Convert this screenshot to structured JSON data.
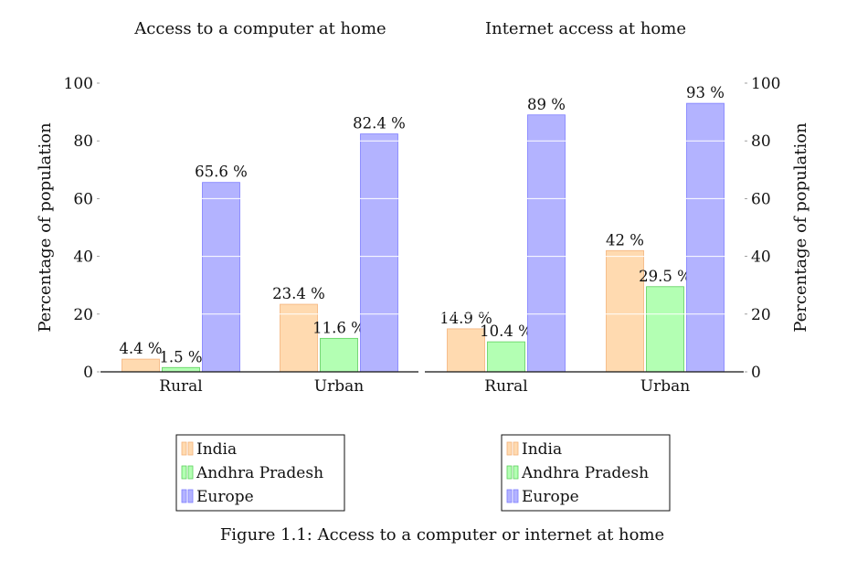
{
  "figure": {
    "caption": "Figure 1.1: Access to a computer or internet at home"
  },
  "chart_data": [
    {
      "type": "bar",
      "title": "Access to a computer at home",
      "xlabel": "",
      "ylabel": "Percentage of population",
      "ylim": [
        0,
        100
      ],
      "yticks": [
        0,
        20,
        40,
        60,
        80,
        100
      ],
      "y_axis_side": "left",
      "grid": "horizontal white lines",
      "legend_position": "bottom",
      "categories": [
        "Rural",
        "Urban"
      ],
      "series": [
        {
          "name": "India",
          "values": [
            4.4,
            23.4
          ],
          "labels": [
            "4.4 %",
            "23.4 %"
          ],
          "color": "#ffdab0",
          "edge": "#f4b27a"
        },
        {
          "name": "Andhra Pradesh",
          "values": [
            1.5,
            11.6
          ],
          "labels": [
            "1.5 %",
            "11.6 %"
          ],
          "color": "#b3ffb3",
          "edge": "#5dcf5d"
        },
        {
          "name": "Europe",
          "values": [
            65.6,
            82.4
          ],
          "labels": [
            "65.6 %",
            "82.4 %"
          ],
          "color": "#b3b3ff",
          "edge": "#7d7dff"
        }
      ]
    },
    {
      "type": "bar",
      "title": "Internet access at home",
      "xlabel": "",
      "ylabel": "Percentage of population",
      "ylim": [
        0,
        100
      ],
      "yticks": [
        0,
        20,
        40,
        60,
        80,
        100
      ],
      "y_axis_side": "right",
      "grid": "horizontal white lines",
      "legend_position": "bottom",
      "categories": [
        "Rural",
        "Urban"
      ],
      "series": [
        {
          "name": "India",
          "values": [
            14.9,
            42
          ],
          "labels": [
            "14.9 %",
            "42 %"
          ],
          "color": "#ffdab0",
          "edge": "#f4b27a"
        },
        {
          "name": "Andhra Pradesh",
          "values": [
            10.4,
            29.5
          ],
          "labels": [
            "10.4 %",
            "29.5 %"
          ],
          "color": "#b3ffb3",
          "edge": "#5dcf5d"
        },
        {
          "name": "Europe",
          "values": [
            89,
            93
          ],
          "labels": [
            "89 %",
            "93 %"
          ],
          "color": "#b3b3ff",
          "edge": "#7d7dff"
        }
      ]
    }
  ]
}
